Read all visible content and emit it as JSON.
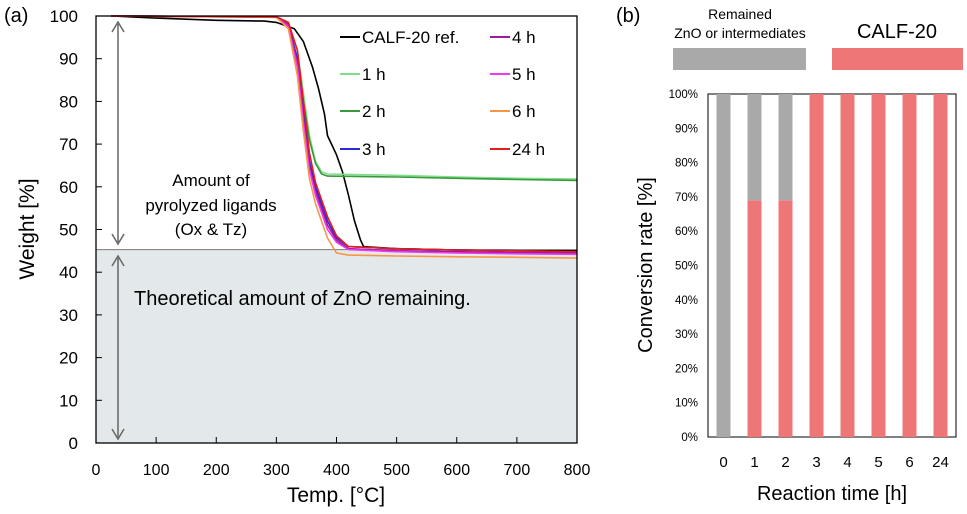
{
  "panels": {
    "a_label": "(a)",
    "b_label": "(b)"
  },
  "colors": {
    "shade": "#e3e9ea",
    "remained": "#a9a9a9",
    "calf20": "#ee7676",
    "ref": "#000000",
    "h1": "#7ede8a",
    "h2": "#3a9a3a",
    "h3": "#2b2bd6",
    "h4": "#a01aa0",
    "h5": "#ee3aee",
    "h6": "#f79646",
    "h24": "#e31c1c"
  },
  "chart_data": [
    {
      "type": "line",
      "title": "",
      "xlabel": "Temp. [°C]",
      "ylabel": "Weight [%]",
      "xlim": [
        0,
        800
      ],
      "ylim": [
        0,
        100
      ],
      "xticks": [
        "0",
        "100",
        "200",
        "300",
        "400",
        "500",
        "600",
        "700",
        "800"
      ],
      "yticks": [
        "0",
        "10",
        "20",
        "30",
        "40",
        "50",
        "60",
        "70",
        "80",
        "90",
        "100"
      ],
      "reference_line": {
        "y": 45.3
      },
      "annotations": {
        "upper_line1": "Amount of",
        "upper_line2": "pyrolyzed ligands",
        "upper_line3": "(Ox & Tz)",
        "lower": "Theoretical amount of ZnO remaining."
      },
      "series": [
        {
          "key": "ref",
          "name": "CALF-20 ref.",
          "x": [
            25,
            60,
            100,
            200,
            280,
            300,
            330,
            345,
            360,
            370,
            380,
            385,
            395,
            400,
            410,
            420,
            430,
            440,
            445,
            500,
            600,
            700,
            800
          ],
          "y": [
            100,
            99.8,
            99.5,
            99,
            98.8,
            98.5,
            97,
            94,
            88,
            83,
            77,
            72,
            69,
            67.5,
            63.5,
            58,
            52,
            47.5,
            46,
            45.5,
            45.2,
            45,
            45
          ]
        },
        {
          "key": "h1",
          "name": "1 h",
          "x": [
            25,
            300,
            320,
            335,
            345,
            355,
            365,
            375,
            385,
            500,
            600,
            700,
            800
          ],
          "y": [
            100,
            99.8,
            98,
            92,
            82,
            72,
            66,
            63.5,
            63,
            62.7,
            62.3,
            62,
            61.8
          ]
        },
        {
          "key": "h2",
          "name": "2 h",
          "x": [
            25,
            300,
            320,
            335,
            345,
            355,
            365,
            375,
            385,
            500,
            600,
            700,
            800
          ],
          "y": [
            100,
            99.7,
            97.5,
            90,
            80,
            71,
            65.5,
            63,
            62.5,
            62.3,
            62,
            61.7,
            61.5
          ]
        },
        {
          "key": "h3",
          "name": "3 h",
          "x": [
            25,
            300,
            320,
            335,
            345,
            355,
            365,
            375,
            385,
            400,
            420,
            500,
            600,
            700,
            800
          ],
          "y": [
            100,
            99.8,
            98,
            90,
            78,
            66,
            60,
            56,
            52,
            48,
            46,
            45.5,
            45.2,
            45,
            44.8
          ]
        },
        {
          "key": "h4",
          "name": "4 h",
          "x": [
            25,
            300,
            320,
            335,
            345,
            355,
            365,
            375,
            385,
            400,
            420,
            500,
            600,
            700,
            800
          ],
          "y": [
            100,
            99.8,
            98,
            89,
            76,
            65,
            59,
            55,
            51,
            47.5,
            45.5,
            45,
            44.8,
            44.6,
            44.5
          ]
        },
        {
          "key": "h5",
          "name": "5 h",
          "x": [
            25,
            300,
            320,
            335,
            345,
            355,
            365,
            375,
            385,
            400,
            420,
            500,
            600,
            700,
            800
          ],
          "y": [
            100,
            99.8,
            97.5,
            88,
            75,
            64,
            58,
            54,
            50,
            47,
            45.3,
            44.8,
            44.5,
            44.3,
            44.2
          ]
        },
        {
          "key": "h6",
          "name": "6 h",
          "x": [
            25,
            300,
            320,
            335,
            345,
            355,
            365,
            375,
            385,
            400,
            420,
            500,
            600,
            700,
            800
          ],
          "y": [
            100,
            99.7,
            97,
            86,
            73,
            62,
            56,
            52,
            48,
            44.5,
            44,
            43.8,
            43.6,
            43.5,
            43.3
          ]
        },
        {
          "key": "h24",
          "name": "24 h",
          "x": [
            25,
            300,
            320,
            335,
            345,
            355,
            365,
            375,
            385,
            400,
            420,
            500,
            600,
            700,
            800
          ],
          "y": [
            100,
            99.8,
            98.5,
            92,
            80,
            68,
            61,
            57,
            53,
            48.5,
            46,
            45.5,
            45.2,
            45,
            44.8
          ]
        }
      ]
    },
    {
      "type": "bar",
      "stacked": true,
      "title": "",
      "xlabel": "Reaction time [h]",
      "ylabel": "Conversion rate  [%]",
      "ylim": [
        0,
        100
      ],
      "yticks": [
        "0%",
        "10%",
        "20%",
        "30%",
        "40%",
        "50%",
        "60%",
        "70%",
        "80%",
        "90%",
        "100%"
      ],
      "categories": [
        "0",
        "1",
        "2",
        "3",
        "4",
        "5",
        "6",
        "24"
      ],
      "series": [
        {
          "key": "calf20",
          "name": "CALF-20",
          "values": [
            0,
            69,
            69,
            100,
            100,
            100,
            100,
            100
          ]
        },
        {
          "key": "remained",
          "name": "Remained ZnO or intermediates",
          "values": [
            100,
            31,
            31,
            0,
            0,
            0,
            0,
            0
          ]
        }
      ],
      "legend": {
        "remained_line1": "Remained",
        "remained_line2": "ZnO or intermediates",
        "calf20": "CALF-20"
      }
    }
  ]
}
